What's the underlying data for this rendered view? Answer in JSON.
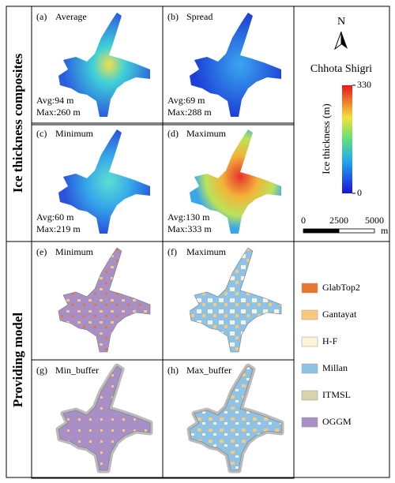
{
  "row_groups": [
    {
      "label": "Ice thickness composites"
    },
    {
      "label": "Providing model"
    }
  ],
  "panels": [
    {
      "tag": "(a)",
      "title": "Average",
      "stats": [
        "Avg:94 m",
        "Max:260 m"
      ]
    },
    {
      "tag": "(b)",
      "title": "Spread",
      "stats": [
        "Avg:69 m",
        "Max:288 m"
      ]
    },
    {
      "tag": "(c)",
      "title": "Minimum",
      "stats": [
        "Avg:60 m",
        "Max:219 m"
      ]
    },
    {
      "tag": "(d)",
      "title": "Maximum",
      "stats": [
        "Avg:130 m",
        "Max:333 m"
      ]
    },
    {
      "tag": "(e)",
      "title": "Minimum"
    },
    {
      "tag": "(f)",
      "title": "Maximum"
    },
    {
      "tag": "(g)",
      "title": "Min_buffer"
    },
    {
      "tag": "(h)",
      "title": "Max_buffer"
    }
  ],
  "legend": {
    "north": "N",
    "glacier": "Chhota Shigri",
    "colorbar": {
      "title": "Ice thickness (m)",
      "ticks": [
        0,
        330
      ]
    },
    "scalebar": {
      "ticks": [
        0,
        2500,
        5000
      ],
      "unit": "m"
    },
    "models": [
      {
        "name": "GlabTop2",
        "color": "#e8772e"
      },
      {
        "name": "Gantayat",
        "color": "#f7c97e"
      },
      {
        "name": "H-F",
        "color": "#fdf3d6"
      },
      {
        "name": "Millan",
        "color": "#8fc3e6"
      },
      {
        "name": "ITMSL",
        "color": "#d6d3ad"
      },
      {
        "name": "OGGM",
        "color": "#a88fc6"
      }
    ]
  }
}
